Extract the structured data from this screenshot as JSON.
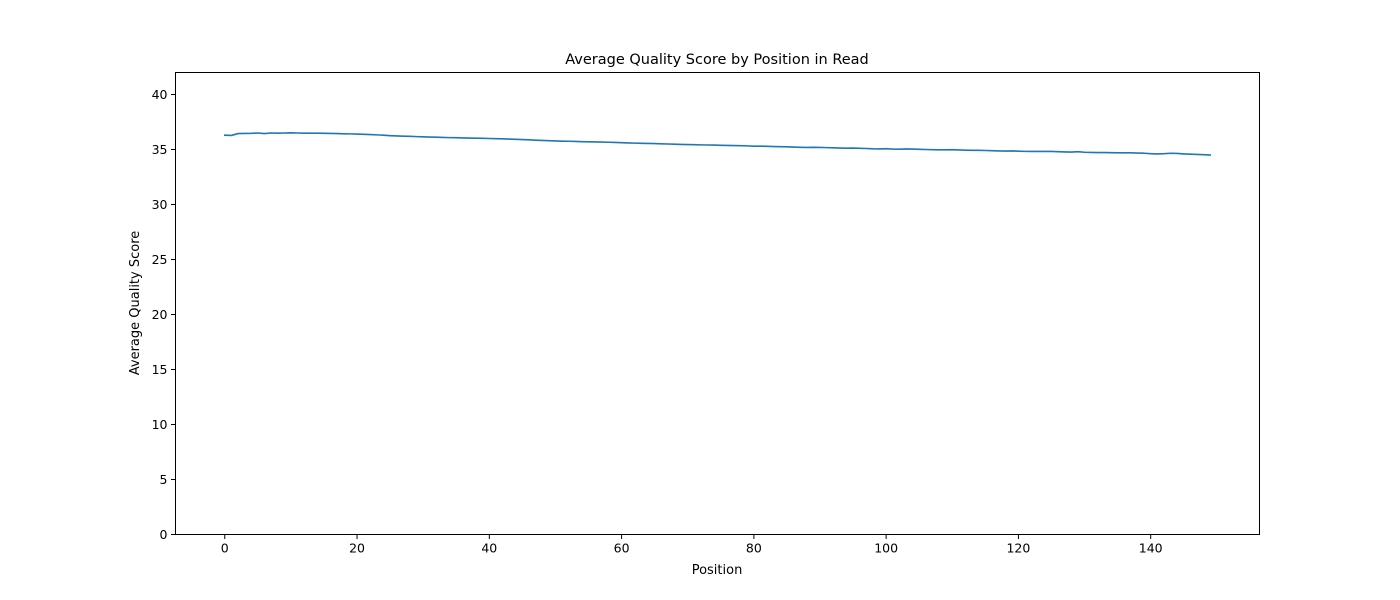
{
  "chart_data": {
    "type": "line",
    "title": "Average Quality Score by Position in Read",
    "xlabel": "Position",
    "ylabel": "Average Quality Score",
    "xlim": [
      -7.45,
      156.45
    ],
    "ylim": [
      0,
      42
    ],
    "xticks": [
      0,
      20,
      40,
      60,
      80,
      100,
      120,
      140
    ],
    "yticks": [
      0,
      5,
      10,
      15,
      20,
      25,
      30,
      35,
      40
    ],
    "grid": false,
    "legend": "none",
    "line_color": "#1f77b4",
    "series": [
      {
        "x_start": 0,
        "x_step": 1,
        "values": [
          36.3,
          36.28,
          36.45,
          36.46,
          36.47,
          36.5,
          36.45,
          36.5,
          36.48,
          36.5,
          36.52,
          36.5,
          36.48,
          36.48,
          36.48,
          36.47,
          36.46,
          36.45,
          36.43,
          36.42,
          36.4,
          36.38,
          36.36,
          36.33,
          36.3,
          36.26,
          36.23,
          36.21,
          36.2,
          36.17,
          36.15,
          36.13,
          36.12,
          36.1,
          36.08,
          36.07,
          36.05,
          36.04,
          36.03,
          36.02,
          36.0,
          35.98,
          35.97,
          35.95,
          35.93,
          35.9,
          35.88,
          35.85,
          35.82,
          35.8,
          35.78,
          35.76,
          35.75,
          35.73,
          35.71,
          35.7,
          35.69,
          35.68,
          35.66,
          35.64,
          35.62,
          35.6,
          35.58,
          35.56,
          35.55,
          35.54,
          35.52,
          35.5,
          35.48,
          35.46,
          35.45,
          35.44,
          35.42,
          35.41,
          35.4,
          35.38,
          35.37,
          35.36,
          35.35,
          35.33,
          35.3,
          35.3,
          35.29,
          35.27,
          35.26,
          35.24,
          35.22,
          35.2,
          35.19,
          35.2,
          35.19,
          35.17,
          35.15,
          35.13,
          35.12,
          35.13,
          35.11,
          35.09,
          35.06,
          35.05,
          35.07,
          35.04,
          35.03,
          35.05,
          35.04,
          35.02,
          35.0,
          34.98,
          34.97,
          34.97,
          34.98,
          34.96,
          34.94,
          34.93,
          34.93,
          34.91,
          34.89,
          34.87,
          34.86,
          34.87,
          34.85,
          34.83,
          34.82,
          34.83,
          34.82,
          34.82,
          34.8,
          34.78,
          34.77,
          34.8,
          34.75,
          34.73,
          34.72,
          34.72,
          34.71,
          34.7,
          34.7,
          34.7,
          34.68,
          34.66,
          34.62,
          34.6,
          34.62,
          34.66,
          34.64,
          34.6,
          34.57,
          34.55,
          34.53,
          34.5
        ]
      }
    ]
  }
}
